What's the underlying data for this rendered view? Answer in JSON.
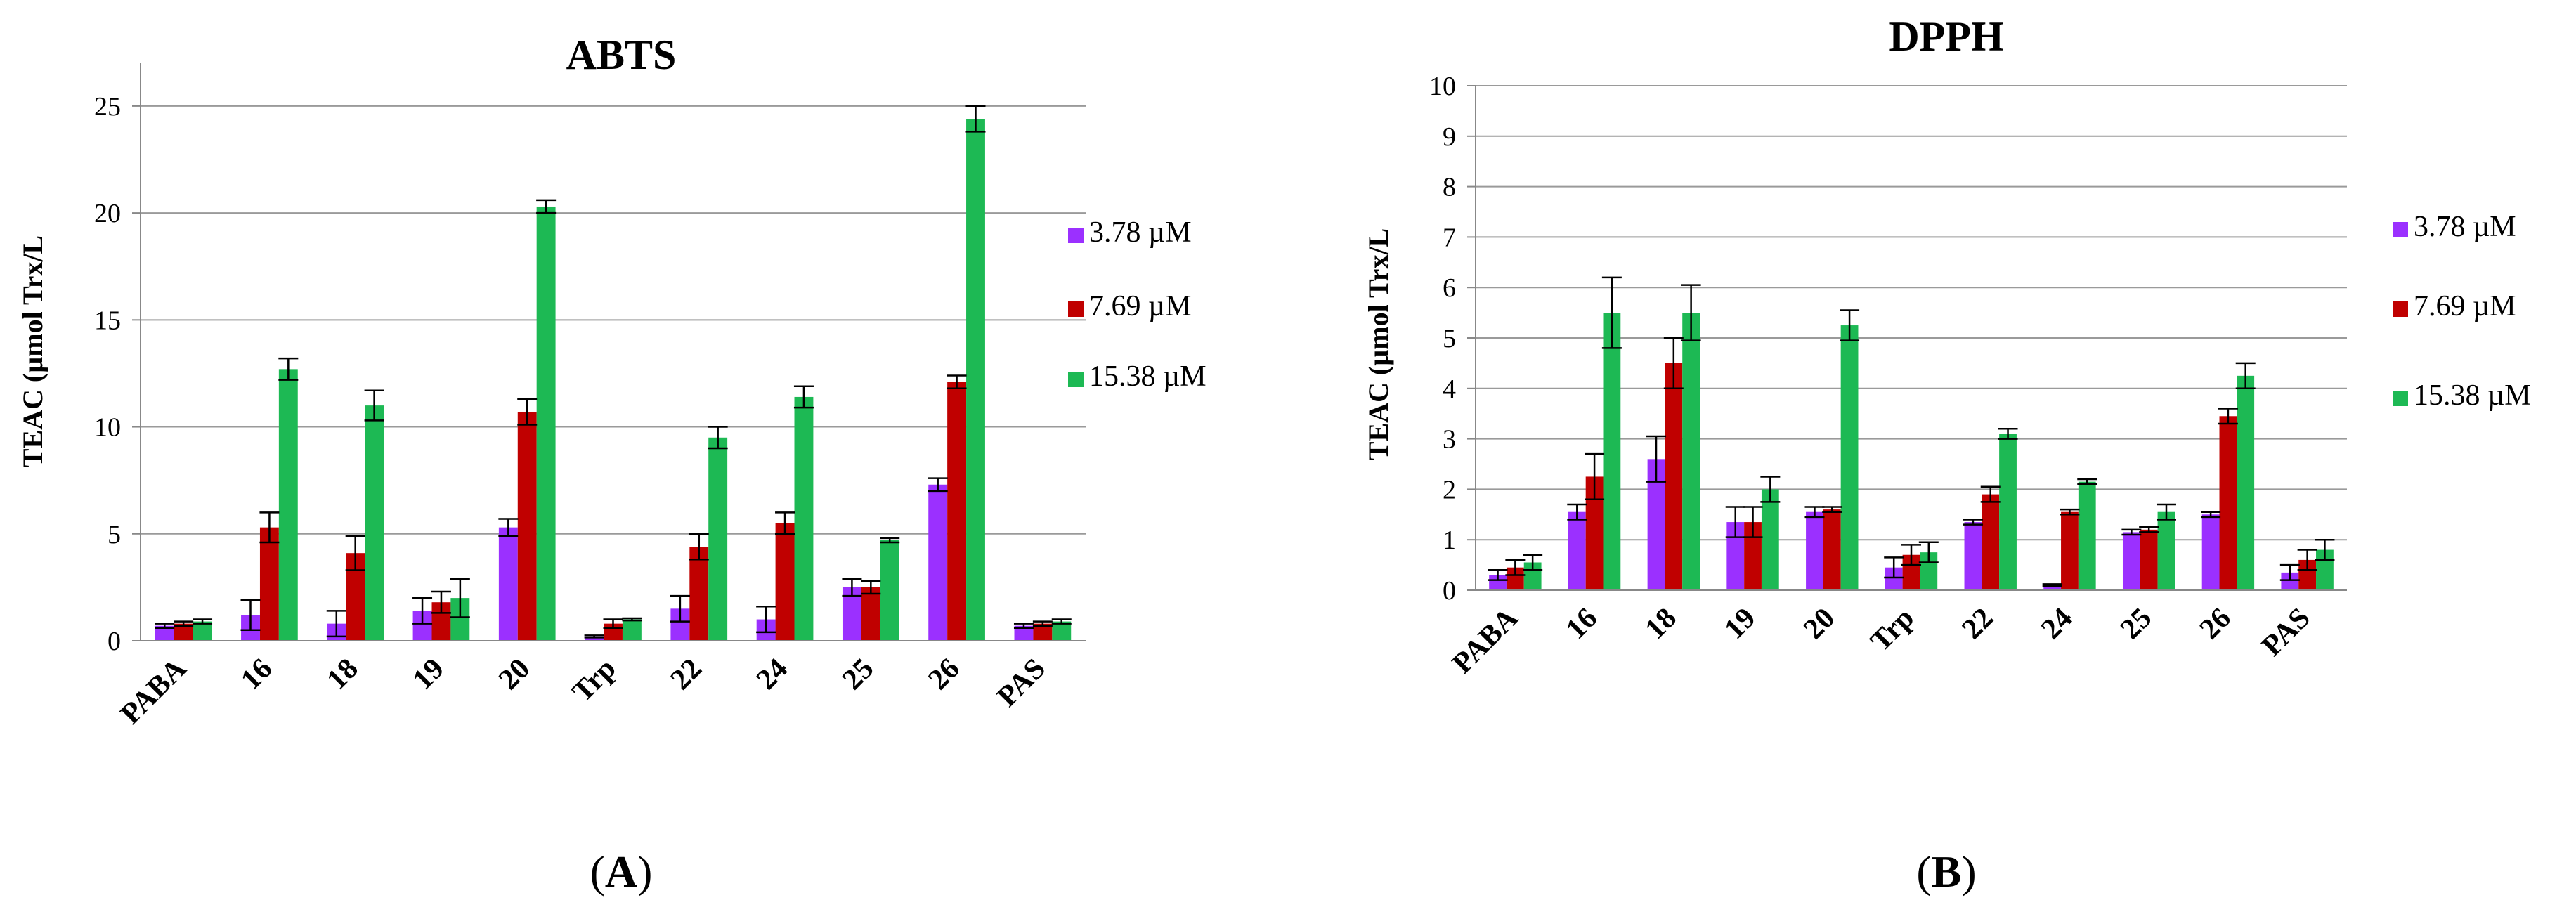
{
  "chart_data": [
    {
      "type": "bar",
      "title": "ABTS",
      "xlabel": "",
      "ylabel": "TEAC (µmol Trx/L",
      "ylim": [
        0,
        27
      ],
      "yticks": [
        0,
        5,
        10,
        15,
        20,
        25
      ],
      "grid": true,
      "legend_position": "right",
      "categories": [
        "PABA",
        "16",
        "18",
        "19",
        "20",
        "Trp",
        "22",
        "24",
        "25",
        "26",
        "PAS"
      ],
      "series": [
        {
          "name": "3.78 µM",
          "color": "#9b30ff",
          "values": [
            0.7,
            1.2,
            0.8,
            1.4,
            5.3,
            0.2,
            1.5,
            1.0,
            2.5,
            7.3,
            0.7
          ],
          "errors": [
            0.1,
            0.7,
            0.6,
            0.6,
            0.4,
            0.05,
            0.6,
            0.6,
            0.4,
            0.3,
            0.1
          ]
        },
        {
          "name": "7.69 µM",
          "color": "#c00000",
          "values": [
            0.8,
            5.3,
            4.1,
            1.8,
            10.7,
            0.8,
            4.4,
            5.5,
            2.5,
            12.1,
            0.8
          ],
          "errors": [
            0.1,
            0.7,
            0.8,
            0.5,
            0.6,
            0.2,
            0.6,
            0.5,
            0.3,
            0.3,
            0.1
          ]
        },
        {
          "name": "15.38 µM",
          "color": "#1db954",
          "values": [
            0.9,
            12.7,
            11.0,
            2.0,
            20.3,
            1.0,
            9.5,
            11.4,
            4.7,
            24.4,
            0.9
          ],
          "errors": [
            0.1,
            0.5,
            0.7,
            0.9,
            0.3,
            0.05,
            0.5,
            0.5,
            0.1,
            0.6,
            0.1
          ]
        }
      ],
      "caption_letter": "A"
    },
    {
      "type": "bar",
      "title": "DPPH",
      "xlabel": "",
      "ylabel": "TEAC (µmol Trx/L",
      "ylim": [
        0,
        10
      ],
      "yticks": [
        0,
        1,
        2,
        3,
        4,
        5,
        6,
        7,
        8,
        9,
        10
      ],
      "grid": true,
      "legend_position": "right",
      "categories": [
        "PABA",
        "16",
        "18",
        "19",
        "20",
        "Trp",
        "22",
        "24",
        "25",
        "26",
        "PAS"
      ],
      "series": [
        {
          "name": "3.78 µM",
          "color": "#9b30ff",
          "values": [
            0.3,
            1.55,
            2.6,
            1.35,
            1.55,
            0.45,
            1.35,
            0.1,
            1.15,
            1.5,
            0.35
          ],
          "errors": [
            0.1,
            0.15,
            0.45,
            0.3,
            0.1,
            0.2,
            0.05,
            0.02,
            0.05,
            0.05,
            0.15
          ]
        },
        {
          "name": "7.69 µM",
          "color": "#c00000",
          "values": [
            0.45,
            2.25,
            4.5,
            1.35,
            1.6,
            0.7,
            1.9,
            1.55,
            1.2,
            3.45,
            0.6
          ],
          "errors": [
            0.15,
            0.45,
            0.5,
            0.3,
            0.05,
            0.2,
            0.15,
            0.05,
            0.05,
            0.15,
            0.2
          ]
        },
        {
          "name": "15.38 µM",
          "color": "#1db954",
          "values": [
            0.55,
            5.5,
            5.5,
            2.0,
            5.25,
            0.75,
            3.1,
            2.15,
            1.55,
            4.25,
            0.8
          ],
          "errors": [
            0.15,
            0.7,
            0.55,
            0.25,
            0.3,
            0.2,
            0.1,
            0.05,
            0.15,
            0.25,
            0.2
          ]
        }
      ],
      "caption_letter": "B"
    }
  ]
}
